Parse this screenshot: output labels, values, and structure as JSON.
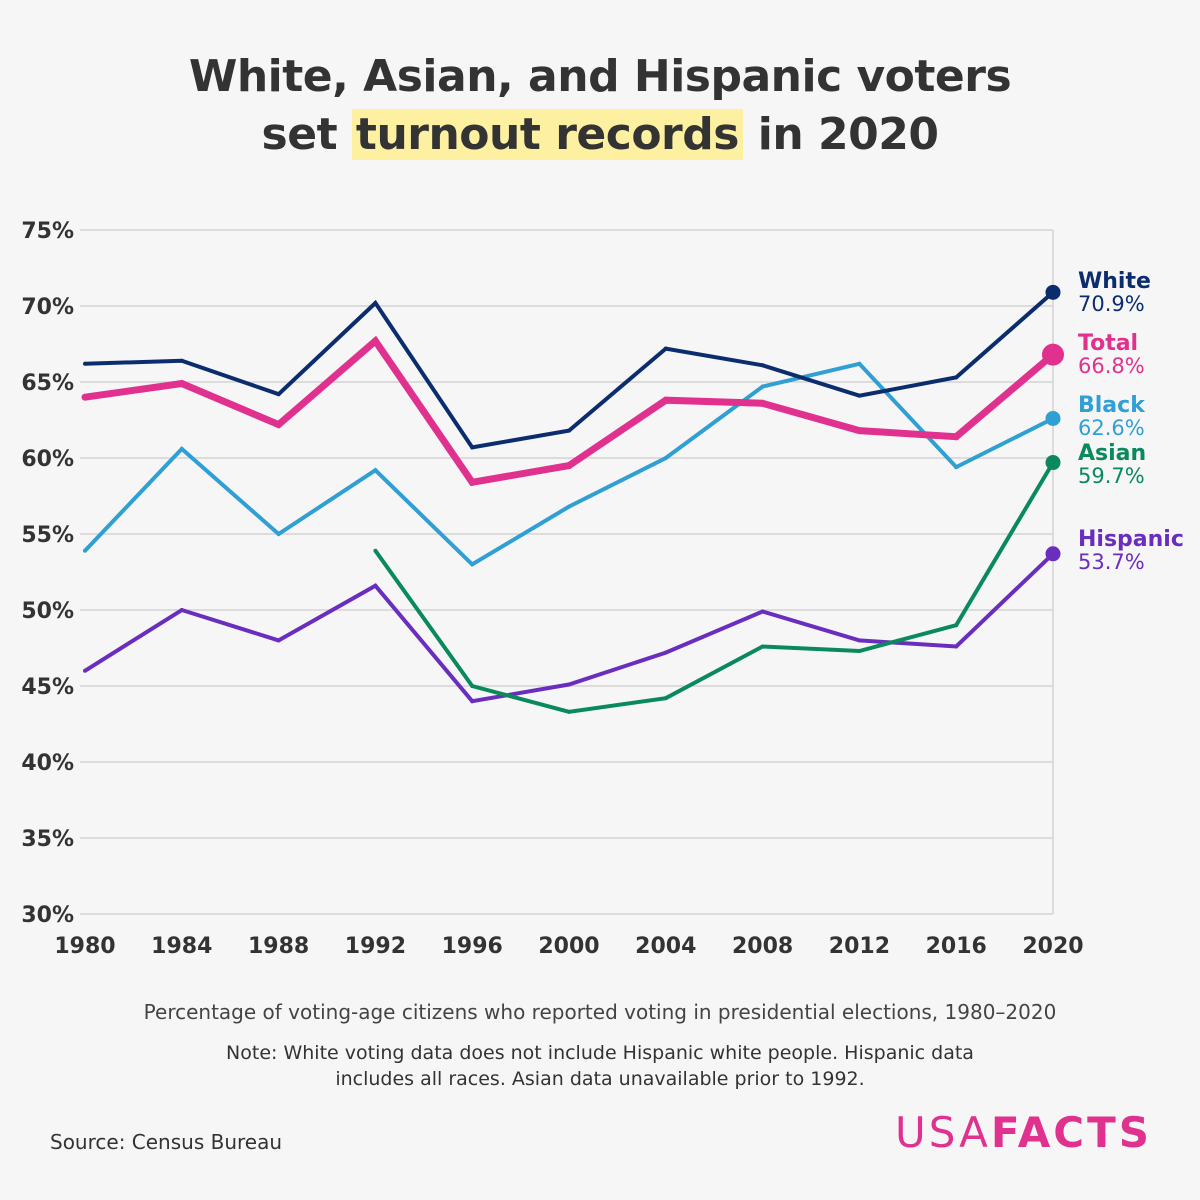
{
  "title": {
    "line1": "White, Asian, and Hispanic voters",
    "line2_before": "set ",
    "line2_highlight": "turnout records",
    "line2_after": " in 2020"
  },
  "subtitle": "Percentage of voting-age citizens who reported voting in presidential elections, 1980–2020",
  "note": "Note: White voting data does not include Hispanic white people. Hispanic data includes all races. Asian data unavailable prior to 1992.",
  "source": "Source: Census Bureau",
  "logo": {
    "part1": "USA",
    "part2": "FACTS"
  },
  "chart_data": {
    "type": "line",
    "title": "White, Asian, and Hispanic voters set turnout records in 2020",
    "xlabel": "",
    "ylabel": "",
    "x": [
      "1980",
      "1984",
      "1988",
      "1992",
      "1996",
      "2000",
      "2004",
      "2008",
      "2012",
      "2016",
      "2020"
    ],
    "ylim": [
      30,
      75
    ],
    "yticks": [
      30,
      35,
      40,
      45,
      50,
      55,
      60,
      65,
      70,
      75
    ],
    "ytick_labels": [
      "30%",
      "35%",
      "40%",
      "45%",
      "50%",
      "55%",
      "60%",
      "65%",
      "70%",
      "75%"
    ],
    "grid": true,
    "series": [
      {
        "name": "White",
        "color": "#0b2d6e",
        "values": [
          66.2,
          66.4,
          64.2,
          70.2,
          60.7,
          61.8,
          67.2,
          66.1,
          64.1,
          65.3,
          70.9
        ],
        "end_label": "70.9%"
      },
      {
        "name": "Total",
        "color": "#e0318f",
        "values": [
          64.0,
          64.9,
          62.2,
          67.7,
          58.4,
          59.5,
          63.8,
          63.6,
          61.8,
          61.4,
          66.8
        ],
        "end_label": "66.8%"
      },
      {
        "name": "Black",
        "color": "#2f9fd4",
        "values": [
          53.9,
          60.6,
          55.0,
          59.2,
          53.0,
          56.8,
          60.0,
          64.7,
          66.2,
          59.4,
          62.6
        ],
        "end_label": "62.6%"
      },
      {
        "name": "Asian",
        "color": "#0a8a5c",
        "values": [
          null,
          null,
          null,
          53.9,
          45.0,
          43.3,
          44.2,
          47.6,
          47.3,
          49.0,
          59.7
        ],
        "end_label": "59.7%"
      },
      {
        "name": "Hispanic",
        "color": "#6a2ebf",
        "values": [
          46.0,
          50.0,
          48.0,
          51.6,
          44.0,
          45.1,
          47.2,
          49.9,
          48.0,
          47.6,
          53.7
        ],
        "end_label": "53.7%"
      }
    ]
  }
}
